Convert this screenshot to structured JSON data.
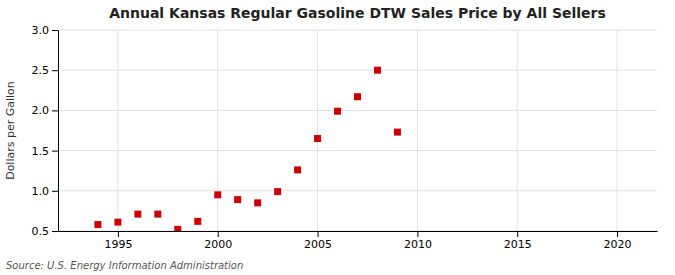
{
  "chart_data": {
    "type": "scatter",
    "title": "Annual Kansas Regular Gasoline DTW Sales Price by All Sellers",
    "ylabel": "Dollars per Gallon",
    "annotations": [
      "Source: U.S. Energy Information Administration"
    ],
    "x": [
      1994,
      1995,
      1996,
      1997,
      1998,
      1999,
      2000,
      2001,
      2002,
      2003,
      2004,
      2005,
      2006,
      2007,
      2008,
      2009
    ],
    "values": [
      0.58,
      0.61,
      0.71,
      0.71,
      0.52,
      0.62,
      0.95,
      0.89,
      0.85,
      0.99,
      1.26,
      1.65,
      1.99,
      2.17,
      2.5,
      1.73
    ],
    "color": "#cc0000",
    "marker": "square",
    "xlim": [
      1992,
      2022
    ],
    "ylim": [
      0.5,
      3.0
    ],
    "xticks": [
      1995,
      2000,
      2005,
      2010,
      2015,
      2020
    ],
    "yticks": [
      0.5,
      {
        "value": 1.0,
        "label": "1.0"
      },
      1.5,
      {
        "value": 2.0,
        "label": "2.0"
      },
      2.5,
      {
        "value": 3.0,
        "label": "3.0"
      }
    ],
    "grid": true
  }
}
